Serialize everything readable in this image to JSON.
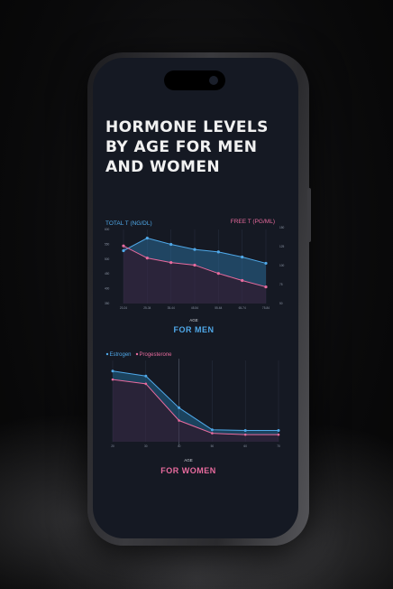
{
  "title": "HORMONE LEVELS BY AGE FOR MEN AND WOMEN",
  "colors": {
    "blue": "#4fa8e8",
    "pink": "#e86b9e",
    "screen": "#151923"
  },
  "chart_data": [
    {
      "type": "line",
      "axis_label_left": "TOTAL T (NG/DL)",
      "axis_label_right": "FREE T (PG/ML)",
      "xlabel": "AGE",
      "caption": "FOR MEN",
      "x": [
        "20-24",
        "25-34",
        "35-44",
        "45-54",
        "55-64",
        "65-74",
        "75-84"
      ],
      "series": [
        {
          "values": [
            550,
            600,
            575,
            555,
            545,
            525,
            500
          ]
        },
        {
          "values": [
            140,
            121,
            114,
            110,
            97,
            86,
            76
          ]
        }
      ],
      "yticks_left": [
        "600",
        "550",
        "500",
        "450",
        "400",
        "350"
      ],
      "yticks_right": [
        "150",
        "125",
        "100",
        "75",
        "50"
      ],
      "ylim_left": [
        340,
        620
      ],
      "ylim_right": [
        50,
        160
      ]
    },
    {
      "type": "line",
      "xlabel": "AGE",
      "caption": "FOR WOMEN",
      "x": [
        "20",
        "30",
        "40",
        "50",
        "60",
        "70"
      ],
      "series": [
        {
          "name": "Estrogen",
          "values": [
            100,
            93,
            48,
            17,
            16,
            16
          ]
        },
        {
          "name": "Progesterone",
          "values": [
            88,
            82,
            30,
            12,
            10,
            10
          ]
        }
      ],
      "ylim": [
        0,
        115
      ]
    }
  ]
}
